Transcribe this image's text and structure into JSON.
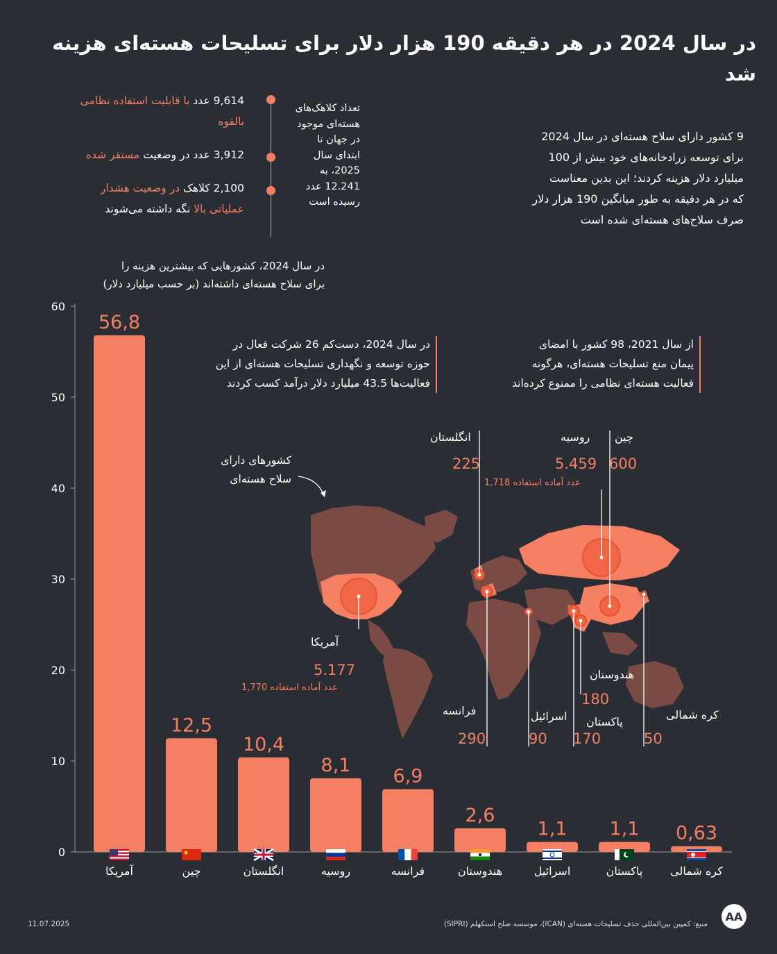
{
  "title": "در سال 2024 در هر دقیقه 190 هزار دلار برای تسلیحات  هسته‌ای هزینه شد",
  "warheads": {
    "total_label": [
      "تعداد کلاهک‌های",
      "هسته‌ای موجود",
      "در جهان تا",
      "ابتدای سال",
      "2025، به",
      "12.241 عدد",
      "رسیده است"
    ],
    "stat1_line1_num": "9,614 عدد ",
    "stat1_line1_accent": "با قابلیت استفاده نظامی",
    "stat1_line2_accent": "بالقوه",
    "stat2_num": "3,912 عدد در وضعیت ",
    "stat2_accent": "مستقر شده",
    "stat3_line1_num": "2,100 کلاهک ",
    "stat3_line1_accent": "در وضعیت هشدار",
    "stat3_line2_accent": "عملیاتی بالا",
    "stat3_line2_rest": " نگه داشته می‌شوند"
  },
  "summary": [
    "9 کشور دارای سلاح هسته‌ای در سال 2024",
    "برای توسعه زرادخانه‌های خود بیش از 100",
    "میلیارد دلار هزینه کردند؛ این بدین معناست",
    "که در هر دقیقه به طور میانگین 190 هزار دلار",
    "صرف سلاح‌های هسته‌ای شده است"
  ],
  "chart_caption": [
    "در سال 2024، کشورهایی که بیشترین هزینه را",
    "برای سلاح هسته‌ای داشته‌اند (بر حسب میلیارد دلار)"
  ],
  "note_companies": [
    "در سال 2024، دست‌کم 26 شرکت فعال در",
    "حوزه توسعه و نگهداری تسلیحات هسته‌ای از این",
    "فعالیت‌ها 43.5 میلیارد دلار درآمد کسب کردند"
  ],
  "note_treaty": [
    "از سال 2021، 98 کشور با امضای",
    "پیمان منع تسلیحات هسته‌ای، هرگونه",
    "فعالیت هسته‌ای نظامی را ممنوع کرده‌اند"
  ],
  "map": {
    "legend": [
      "کشورهای دارای",
      "سلاح هسته‌ای"
    ],
    "countries": [
      {
        "name": "آمریکا",
        "warheads": "5.177",
        "ready": "1,770 عدد آماده استفاده"
      },
      {
        "name": "روسیه",
        "warheads": "5.459",
        "ready": "1,718 عدد آماده استفاده"
      },
      {
        "name": "چین",
        "warheads": "600"
      },
      {
        "name": "انگلستان",
        "warheads": "225"
      },
      {
        "name": "فرانسه",
        "warheads": "290"
      },
      {
        "name": "اسرائیل",
        "warheads": "90"
      },
      {
        "name": "پاکستان",
        "warheads": "170"
      },
      {
        "name": "هندوستان",
        "warheads": "180"
      },
      {
        "name": "کره شمالی",
        "warheads": "50"
      }
    ]
  },
  "chart_data": {
    "type": "bar",
    "title": "در سال 2024، کشورهایی که بیشترین هزینه را برای سلاح هسته‌ای داشته‌اند (بر حسب میلیارد دلار)",
    "xlabel": "",
    "ylabel": "",
    "ylim": [
      0,
      60
    ],
    "yticks": [
      "0",
      "10",
      "20",
      "30",
      "40",
      "50",
      "60"
    ],
    "categories": [
      "آمریکا",
      "چین",
      "انگلستان",
      "روسیه",
      "فرانسه",
      "هندوستان",
      "اسرائیل",
      "پاکستان",
      "کره شمالی"
    ],
    "values": [
      56.8,
      12.5,
      10.4,
      8.1,
      6.9,
      2.6,
      1.1,
      1.1,
      0.63
    ],
    "value_labels": [
      "56,8",
      "12,5",
      "10,4",
      "8,1",
      "6,9",
      "2,6",
      "1,1",
      "1,1",
      "0,63"
    ],
    "flags": [
      "us",
      "cn",
      "gb",
      "ru",
      "fr",
      "in",
      "il",
      "pk",
      "kp"
    ],
    "bar_color": "#f47f63"
  },
  "colors": {
    "background": "#2a2d33",
    "accent": "#f47f63",
    "map_land": "#7a4b45",
    "map_nuclear": "#f47f63"
  },
  "footer": {
    "date": "11.07.2025",
    "source": "منبع: کمپین بین‌المللی حذف تسلیحات هسته‌ای (ICAN)، موسسه صلح استکهلم (SIPRI)",
    "logo_text": "AA"
  }
}
